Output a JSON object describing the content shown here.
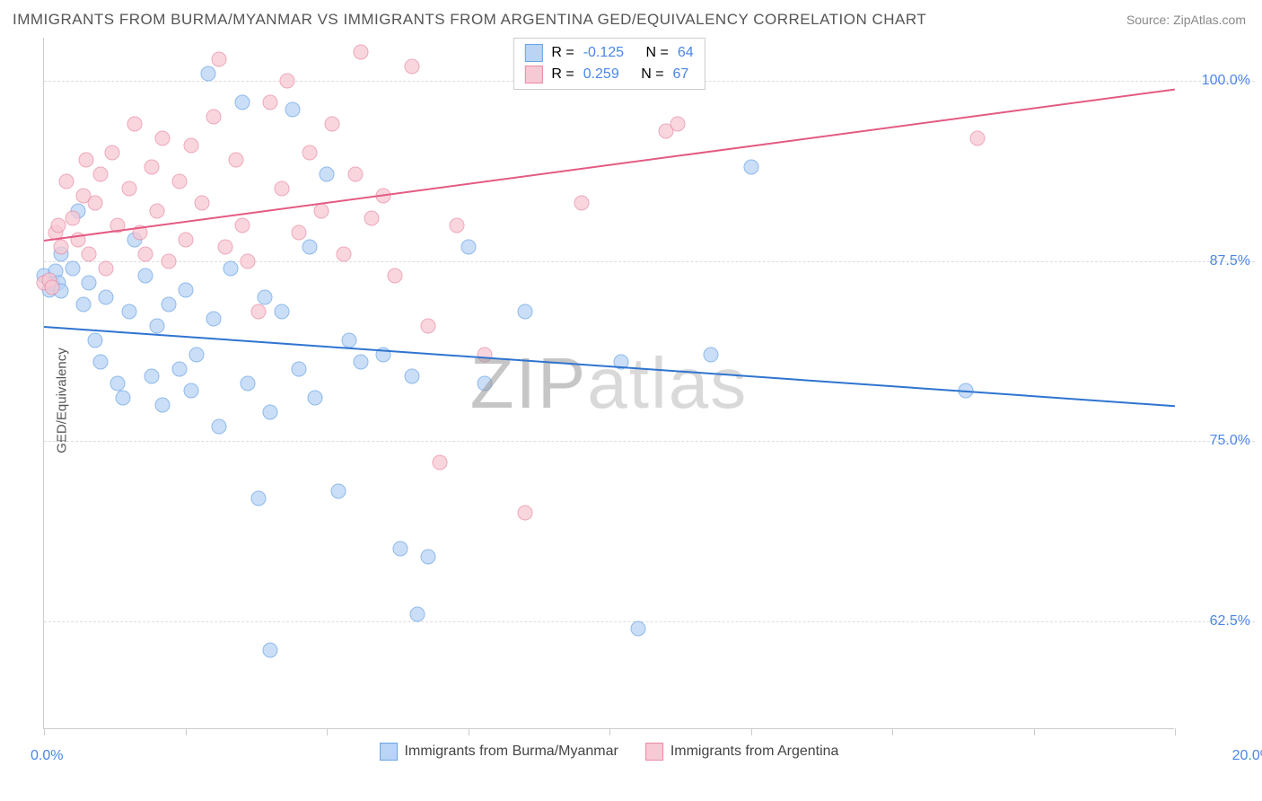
{
  "title": "IMMIGRANTS FROM BURMA/MYANMAR VS IMMIGRANTS FROM ARGENTINA GED/EQUIVALENCY CORRELATION CHART",
  "source_label": "Source: ZipAtlas.com",
  "y_axis_label": "GED/Equivalency",
  "watermark_a": "ZIP",
  "watermark_b": "atlas",
  "chart": {
    "type": "scatter",
    "xlim": [
      0,
      20
    ],
    "ylim": [
      55,
      103
    ],
    "x_tick_positions": [
      0,
      2.5,
      5,
      7.5,
      10,
      12.5,
      15,
      17.5,
      20
    ],
    "x_tick_labels_shown": {
      "0": "0.0%",
      "20": "20.0%"
    },
    "y_grid": [
      62.5,
      75.0,
      87.5,
      100.0
    ],
    "y_tick_labels": [
      "62.5%",
      "75.0%",
      "87.5%",
      "100.0%"
    ],
    "background_color": "#ffffff",
    "grid_color": "#dddddd",
    "axis_color": "#cccccc",
    "marker_radius": 8.5,
    "marker_opacity": 0.75,
    "series": [
      {
        "name": "Immigrants from Burma/Myanmar",
        "color_fill": "#b9d4f5",
        "color_stroke": "#6aa3e6",
        "trend_color": "#2f74d0",
        "R": "-0.125",
        "N": "64",
        "trend": {
          "x1": 0,
          "y1": 83.0,
          "x2": 20,
          "y2": 77.5
        },
        "points": [
          [
            0.0,
            86.5
          ],
          [
            0.1,
            85.5
          ],
          [
            0.15,
            85.9
          ],
          [
            0.2,
            86.8
          ],
          [
            0.25,
            86.0
          ],
          [
            0.3,
            85.4
          ],
          [
            0.3,
            88.0
          ],
          [
            0.5,
            87.0
          ],
          [
            0.6,
            91.0
          ],
          [
            0.7,
            84.5
          ],
          [
            0.8,
            86.0
          ],
          [
            0.9,
            82.0
          ],
          [
            1.0,
            80.5
          ],
          [
            1.1,
            85.0
          ],
          [
            1.3,
            79.0
          ],
          [
            1.4,
            78.0
          ],
          [
            1.5,
            84.0
          ],
          [
            1.6,
            89.0
          ],
          [
            1.8,
            86.5
          ],
          [
            1.9,
            79.5
          ],
          [
            2.0,
            83.0
          ],
          [
            2.1,
            77.5
          ],
          [
            2.2,
            84.5
          ],
          [
            2.4,
            80.0
          ],
          [
            2.5,
            85.5
          ],
          [
            2.6,
            78.5
          ],
          [
            2.7,
            81.0
          ],
          [
            2.9,
            100.5
          ],
          [
            3.0,
            83.5
          ],
          [
            3.1,
            76.0
          ],
          [
            3.3,
            87.0
          ],
          [
            3.5,
            98.5
          ],
          [
            3.6,
            79.0
          ],
          [
            3.8,
            71.0
          ],
          [
            3.9,
            85.0
          ],
          [
            4.0,
            77.0
          ],
          [
            4.0,
            60.5
          ],
          [
            4.2,
            84.0
          ],
          [
            4.4,
            98.0
          ],
          [
            4.5,
            80.0
          ],
          [
            4.7,
            88.5
          ],
          [
            4.8,
            78.0
          ],
          [
            5.0,
            93.5
          ],
          [
            5.2,
            71.5
          ],
          [
            5.4,
            82.0
          ],
          [
            5.6,
            80.5
          ],
          [
            6.0,
            81.0
          ],
          [
            6.3,
            67.5
          ],
          [
            6.5,
            79.5
          ],
          [
            6.6,
            63.0
          ],
          [
            6.8,
            67.0
          ],
          [
            7.5,
            88.5
          ],
          [
            7.8,
            79.0
          ],
          [
            8.5,
            84.0
          ],
          [
            10.2,
            80.5
          ],
          [
            10.5,
            62.0
          ],
          [
            11.8,
            81.0
          ],
          [
            12.5,
            94.0
          ],
          [
            16.3,
            78.5
          ]
        ]
      },
      {
        "name": "Immigrants from Argentina",
        "color_fill": "#f7c9d4",
        "color_stroke": "#e98ba5",
        "trend_color": "#e35b82",
        "R": "0.259",
        "N": "67",
        "trend": {
          "x1": 0,
          "y1": 89.0,
          "x2": 20,
          "y2": 99.5
        },
        "points": [
          [
            0.0,
            86.0
          ],
          [
            0.1,
            86.2
          ],
          [
            0.15,
            85.7
          ],
          [
            0.2,
            89.5
          ],
          [
            0.25,
            90.0
          ],
          [
            0.3,
            88.5
          ],
          [
            0.4,
            93.0
          ],
          [
            0.5,
            90.5
          ],
          [
            0.6,
            89.0
          ],
          [
            0.7,
            92.0
          ],
          [
            0.75,
            94.5
          ],
          [
            0.8,
            88.0
          ],
          [
            0.9,
            91.5
          ],
          [
            1.0,
            93.5
          ],
          [
            1.1,
            87.0
          ],
          [
            1.2,
            95.0
          ],
          [
            1.3,
            90.0
          ],
          [
            1.5,
            92.5
          ],
          [
            1.6,
            97.0
          ],
          [
            1.7,
            89.5
          ],
          [
            1.8,
            88.0
          ],
          [
            1.9,
            94.0
          ],
          [
            2.0,
            91.0
          ],
          [
            2.1,
            96.0
          ],
          [
            2.2,
            87.5
          ],
          [
            2.4,
            93.0
          ],
          [
            2.5,
            89.0
          ],
          [
            2.6,
            95.5
          ],
          [
            2.8,
            91.5
          ],
          [
            3.0,
            97.5
          ],
          [
            3.1,
            101.5
          ],
          [
            3.2,
            88.5
          ],
          [
            3.4,
            94.5
          ],
          [
            3.5,
            90.0
          ],
          [
            3.6,
            87.5
          ],
          [
            3.8,
            84.0
          ],
          [
            4.0,
            98.5
          ],
          [
            4.2,
            92.5
          ],
          [
            4.3,
            100.0
          ],
          [
            4.5,
            89.5
          ],
          [
            4.7,
            95.0
          ],
          [
            4.9,
            91.0
          ],
          [
            5.1,
            97.0
          ],
          [
            5.3,
            88.0
          ],
          [
            5.5,
            93.5
          ],
          [
            5.6,
            102.0
          ],
          [
            5.8,
            90.5
          ],
          [
            6.0,
            92.0
          ],
          [
            6.2,
            86.5
          ],
          [
            6.5,
            101.0
          ],
          [
            6.8,
            83.0
          ],
          [
            7.0,
            73.5
          ],
          [
            7.3,
            90.0
          ],
          [
            7.8,
            81.0
          ],
          [
            8.5,
            70.0
          ],
          [
            9.5,
            91.5
          ],
          [
            11.0,
            96.5
          ],
          [
            11.2,
            97.0
          ],
          [
            16.5,
            96.0
          ]
        ]
      }
    ]
  },
  "legend_top": {
    "r_label": "R =",
    "n_label": "N ="
  },
  "legend_bottom": [
    {
      "swatch_fill": "#b9d4f5",
      "swatch_stroke": "#6aa3e6",
      "label": "Immigrants from Burma/Myanmar"
    },
    {
      "swatch_fill": "#f7c9d4",
      "swatch_stroke": "#e98ba5",
      "label": "Immigrants from Argentina"
    }
  ]
}
